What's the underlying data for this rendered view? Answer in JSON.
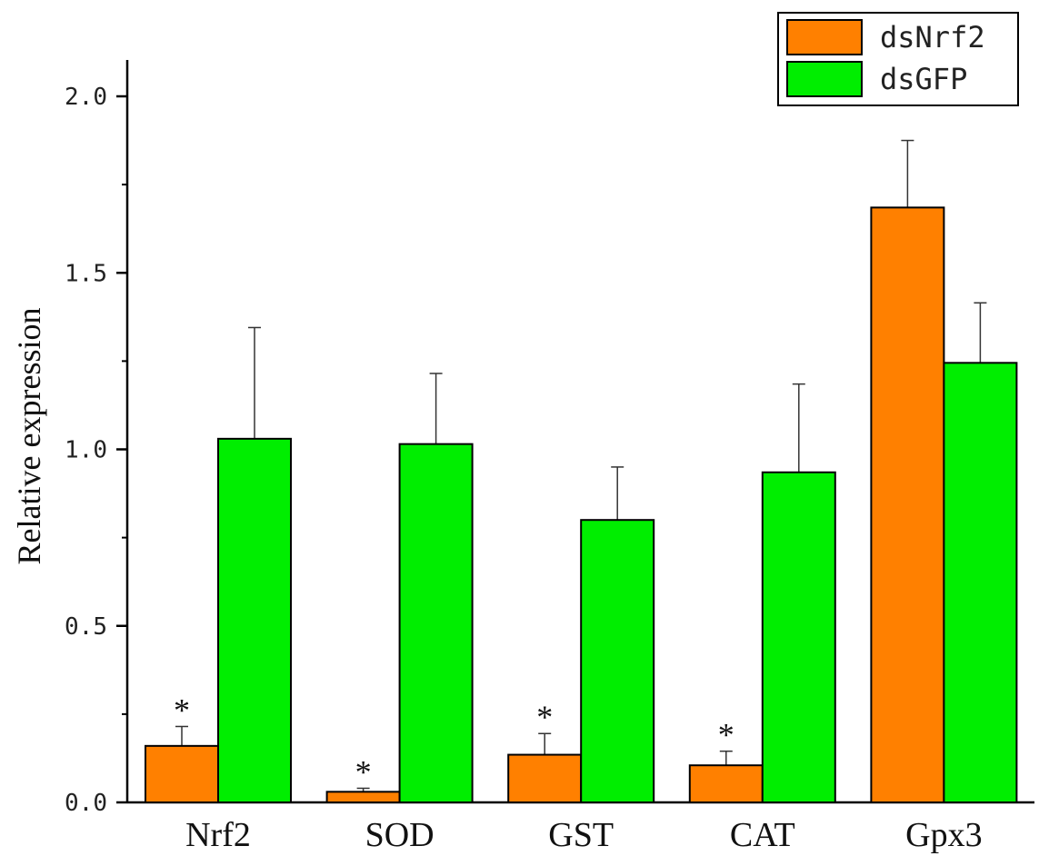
{
  "chart_data": {
    "type": "bar",
    "title": "",
    "xlabel": "",
    "ylabel": "Relative expression",
    "ylim": [
      0,
      2.0
    ],
    "yticks": [
      "0.0",
      "0.5",
      "1.0",
      "1.5",
      "2.0"
    ],
    "ytick_values": [
      0,
      0.5,
      1.0,
      1.5,
      2.0
    ],
    "categories": [
      "Nrf2",
      "SOD",
      "GST",
      "CAT",
      "Gpx3"
    ],
    "series": [
      {
        "name": "dsNrf2",
        "color": "#ff8000",
        "values": [
          0.16,
          0.03,
          0.135,
          0.105,
          1.685
        ],
        "errors": [
          0.055,
          0.01,
          0.06,
          0.04,
          0.19
        ],
        "significance": [
          "*",
          "*",
          "*",
          "*",
          ""
        ]
      },
      {
        "name": "dsGFP",
        "color": "#00ee00",
        "values": [
          1.03,
          1.015,
          0.8,
          0.935,
          1.245
        ],
        "errors": [
          0.315,
          0.2,
          0.15,
          0.25,
          0.17
        ],
        "significance": [
          "",
          "",
          "",
          "",
          ""
        ]
      }
    ],
    "legend_position": "top-right",
    "grid": false
  }
}
